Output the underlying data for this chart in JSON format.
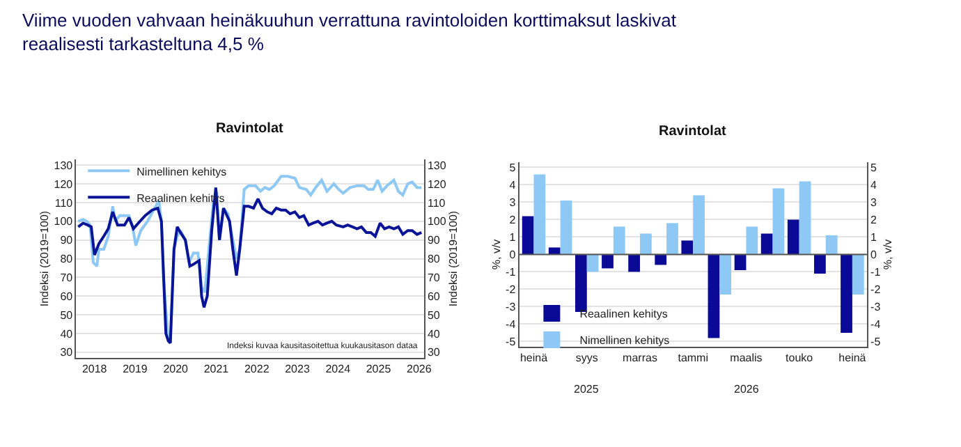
{
  "chart_data": [
    {
      "type": "line",
      "title": "Ravintolat",
      "ylabel": "Indeksi (2019=100)",
      "y2label": "Indeksi (2019=100)",
      "annotations": [
        "Viime vuoden vahvaan heinäkuuhun verrattuna ravintoloiden korttimaksut laskivat reaalisesti tarkasteltuna 4,5 %",
        "Indeksi kuvaa kausitasoitettua kuukausitason dataa"
      ],
      "xlim": [
        2018.05,
        2026.62
      ],
      "xticks": [
        {
          "value": 2018.5,
          "label": "2018"
        },
        {
          "value": 2019.5,
          "label": "2019"
        },
        {
          "value": 2020.5,
          "label": "2020"
        },
        {
          "value": 2021.5,
          "label": "2021"
        },
        {
          "value": 2022.5,
          "label": "2022"
        },
        {
          "value": 2023.5,
          "label": "2023"
        },
        {
          "value": 2024.5,
          "label": "2024"
        },
        {
          "value": 2025.5,
          "label": "2025"
        },
        {
          "value": 2026.5,
          "label": "2026"
        }
      ],
      "ylim": [
        27,
        133
      ],
      "yticks": [
        30,
        40,
        50,
        60,
        70,
        80,
        90,
        100,
        110,
        120,
        130
      ],
      "y2lim": [
        27,
        133
      ],
      "y2ticks": [
        30,
        40,
        50,
        60,
        70,
        80,
        90,
        100,
        110,
        120,
        130
      ],
      "grid": "y",
      "legend": "top left",
      "marker": "none",
      "line_style": "solid",
      "series": [
        {
          "name": "Nimellinen kehitys",
          "color": "#8ec8f5",
          "x": [
            2018.1,
            2018.22,
            2018.31,
            2018.39,
            2018.47,
            2018.56,
            2018.61,
            2018.73,
            2018.84,
            2018.95,
            2019.01,
            2019.12,
            2019.24,
            2019.35,
            2019.44,
            2019.52,
            2019.64,
            2019.81,
            2019.98,
            2020.09,
            2020.15,
            2020.2,
            2020.32,
            2020.37,
            2020.46,
            2020.54,
            2020.62,
            2020.74,
            2020.83,
            2020.94,
            2021.05,
            2021.14,
            2021.22,
            2021.34,
            2021.43,
            2021.51,
            2021.58,
            2021.68,
            2021.79,
            2021.91,
            2022.0,
            2022.08,
            2022.19,
            2022.3,
            2022.47,
            2022.59,
            2022.7,
            2022.81,
            2022.93,
            2023.1,
            2023.27,
            2023.44,
            2023.55,
            2023.72,
            2023.83,
            2023.95,
            2024.1,
            2024.23,
            2024.4,
            2024.52,
            2024.63,
            2024.8,
            2024.97,
            2025.14,
            2025.25,
            2025.37,
            2025.48,
            2025.59,
            2025.71,
            2025.88,
            2025.99,
            2026.1,
            2026.22,
            2026.33,
            2026.45,
            2026.56
          ],
          "values": [
            100,
            101,
            100,
            98,
            78,
            76,
            85,
            85,
            92,
            108,
            100,
            103,
            103,
            103,
            97,
            87,
            95,
            100,
            107,
            111,
            100,
            70,
            36,
            35,
            85,
            92,
            95,
            90,
            78,
            83,
            83,
            65,
            62,
            90,
            110,
            116,
            90,
            107,
            104,
            90,
            80,
            85,
            117,
            119,
            119,
            116,
            118,
            117,
            119,
            124,
            124,
            123,
            118,
            117,
            114,
            118,
            122,
            116,
            120,
            117,
            115,
            118,
            119,
            119,
            117,
            117,
            122,
            116,
            119,
            122,
            116,
            114,
            120,
            121,
            118,
            118
          ]
        },
        {
          "name": "Reaalinen kehitys",
          "color": "#0a1496",
          "x": [
            2018.1,
            2018.22,
            2018.33,
            2018.42,
            2018.5,
            2018.61,
            2018.73,
            2018.84,
            2018.95,
            2019.07,
            2019.24,
            2019.35,
            2019.46,
            2019.58,
            2019.75,
            2019.92,
            2020.06,
            2020.15,
            2020.26,
            2020.32,
            2020.37,
            2020.46,
            2020.54,
            2020.62,
            2020.74,
            2020.85,
            2020.94,
            2021.08,
            2021.14,
            2021.2,
            2021.28,
            2021.39,
            2021.49,
            2021.58,
            2021.68,
            2021.83,
            2021.91,
            2022.0,
            2022.08,
            2022.19,
            2022.3,
            2022.42,
            2022.53,
            2022.64,
            2022.76,
            2022.87,
            2022.98,
            2023.1,
            2023.21,
            2023.32,
            2023.44,
            2023.55,
            2023.66,
            2023.78,
            2023.89,
            2024.01,
            2024.12,
            2024.23,
            2024.35,
            2024.46,
            2024.63,
            2024.74,
            2024.86,
            2024.97,
            2025.08,
            2025.2,
            2025.31,
            2025.42,
            2025.54,
            2025.65,
            2025.76,
            2025.88,
            2025.99,
            2026.1,
            2026.22,
            2026.33,
            2026.45,
            2026.56
          ],
          "values": [
            97,
            99,
            98,
            97,
            82,
            88,
            92,
            96,
            105,
            98,
            98,
            102,
            96,
            99,
            103,
            106,
            107,
            100,
            40,
            36,
            35,
            85,
            97,
            94,
            90,
            76,
            77,
            79,
            60,
            54,
            60,
            95,
            118,
            90,
            107,
            100,
            85,
            71,
            85,
            108,
            108,
            107,
            112,
            107,
            105,
            104,
            107,
            106,
            106,
            104,
            105,
            102,
            103,
            98,
            99,
            100,
            98,
            99,
            100,
            98,
            97,
            98,
            97,
            96,
            97,
            94,
            94,
            92,
            99,
            96,
            97,
            96,
            97,
            93,
            95,
            95,
            93,
            94
          ]
        }
      ]
    },
    {
      "type": "bar",
      "title": "Ravintolat",
      "ylabel": "%, v/v",
      "y2label": "%, v/v",
      "categories": [
        "heinä",
        null,
        "syys",
        null,
        "marras",
        null,
        "tammi",
        null,
        "maalis",
        null,
        "touko",
        null,
        "heinä"
      ],
      "annotations": [
        "2025",
        "2026"
      ],
      "ylim": [
        -5.3,
        5.3
      ],
      "yticks": [
        -5,
        -4,
        -3,
        -2,
        -1,
        0,
        1,
        2,
        3,
        4,
        5
      ],
      "y2lim": [
        -5.3,
        5.3
      ],
      "y2ticks": [
        -5,
        -4,
        -3,
        -2,
        -1,
        0,
        1,
        2,
        3,
        4,
        5
      ],
      "grid": "y",
      "legend": "bottom left",
      "series": [
        {
          "name": "Reaalinen kehitys",
          "color": "#0a0a96",
          "values": [
            2.2,
            0.4,
            -3.3,
            -0.8,
            -1.0,
            -0.6,
            0.8,
            -4.8,
            -0.9,
            1.2,
            2.0,
            -1.1,
            -4.5
          ]
        },
        {
          "name": "Nimellinen kehitys",
          "color": "#8ec8f5",
          "values": [
            4.6,
            3.1,
            -1.0,
            1.6,
            1.2,
            1.8,
            3.4,
            -2.3,
            1.6,
            3.8,
            4.2,
            1.1,
            -2.3
          ]
        }
      ]
    }
  ]
}
